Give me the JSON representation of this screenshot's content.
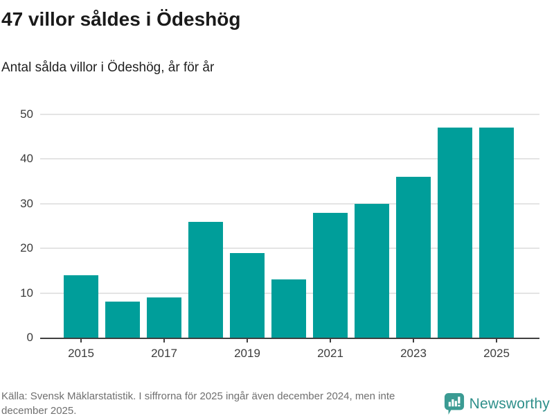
{
  "header": {
    "title": "47 villor såldes i Ödeshög",
    "subtitle": "Antal sålda villor i Ödeshög, år för år"
  },
  "chart_data": {
    "type": "bar",
    "title": "47 villor såldes i Ödeshög",
    "subtitle": "Antal sålda villor i Ödeshög, år för år",
    "categories": [
      "2015",
      "2016",
      "2017",
      "2018",
      "2019",
      "2020",
      "2021",
      "2022",
      "2023",
      "2024",
      "2025"
    ],
    "values": [
      14,
      8,
      9,
      26,
      19,
      13,
      28,
      30,
      36,
      47,
      47
    ],
    "xlabel": "",
    "ylabel": "",
    "ylim": [
      0,
      50
    ],
    "yticks": [
      0,
      10,
      20,
      30,
      40,
      50
    ],
    "xtick_labels": [
      "2015",
      "2017",
      "2019",
      "2021",
      "2023",
      "2025"
    ],
    "grid": true,
    "legend": "none",
    "bar_color": "#009e9a",
    "gridline_color": "#e4e4e4",
    "axis_color": "#3f3f3f"
  },
  "footer": {
    "source_text": "Källa: Svensk Mäklarstatistik. I siffrorna för 2025 ingår även december 2024, men inte december 2025.",
    "brand_name": "Newsworthy",
    "brand_color": "#2e8f8a",
    "brand_icon": "newsworthy-bubble-chart-icon"
  }
}
